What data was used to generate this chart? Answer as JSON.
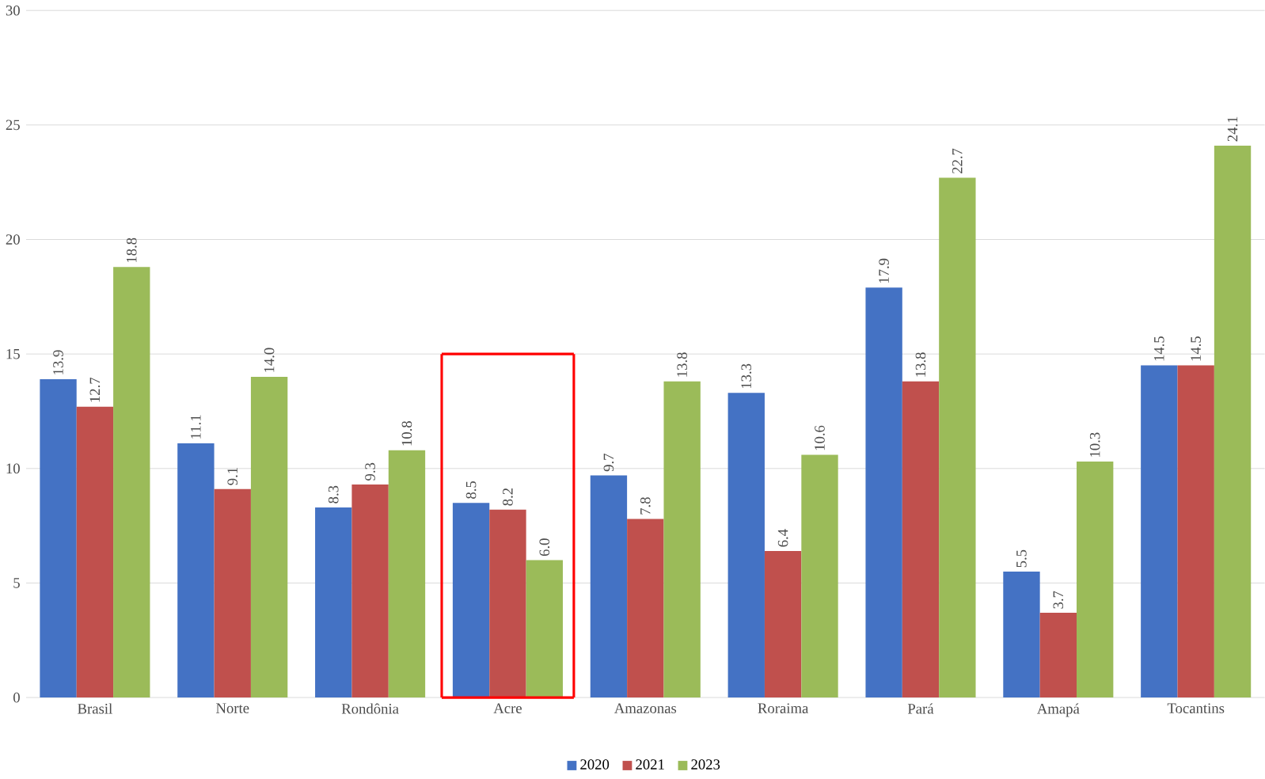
{
  "chart_data": {
    "type": "bar",
    "categories": [
      "Brasil",
      "Norte",
      "Rondônia",
      "Acre",
      "Amazonas",
      "Roraima",
      "Pará",
      "Amapá",
      "Tocantins"
    ],
    "series": [
      {
        "name": "2020",
        "color": "#4472c4",
        "values": [
          13.9,
          11.1,
          8.3,
          8.5,
          9.7,
          13.3,
          17.9,
          5.5,
          14.5
        ],
        "value_labels": [
          "13.9",
          "11.1",
          "8.3",
          "8.5",
          "9.7",
          "13.3",
          "17.9",
          "5.5",
          "14.5"
        ]
      },
      {
        "name": "2021",
        "color": "#c0504d",
        "values": [
          12.7,
          9.1,
          9.3,
          8.2,
          7.8,
          6.4,
          13.8,
          3.7,
          14.5
        ],
        "value_labels": [
          "12.7",
          "9.1",
          "9.3",
          "8.2",
          "7.8",
          "6.4",
          "13.8",
          "3.7",
          "14.5"
        ]
      },
      {
        "name": "2023",
        "color": "#9bbb59",
        "values": [
          18.8,
          14.0,
          10.8,
          6.0,
          13.8,
          10.6,
          22.7,
          10.3,
          24.1
        ],
        "value_labels": [
          "18.8",
          "14.0",
          "10.8",
          "6.0",
          "13.8",
          "10.6",
          "22.7",
          "10.3",
          "24.1"
        ]
      }
    ],
    "ylim": [
      0,
      30
    ],
    "yticks": [
      0,
      5,
      10,
      15,
      20,
      25,
      30
    ],
    "grid": "y",
    "legend": "bottom"
  }
}
